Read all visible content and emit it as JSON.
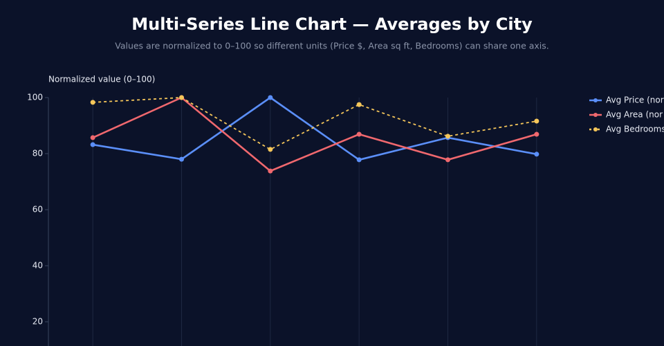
{
  "chart_data": {
    "type": "line",
    "title": "Multi-Series Line Chart — Averages by City",
    "subtitle": "Values are normalized to 0–100 so different units (Price $, Area sq ft, Bedrooms) can share one axis.",
    "y_label": "Normalized value (0–100)",
    "categories": [
      null,
      null,
      null,
      null,
      null,
      null
    ],
    "series": [
      {
        "name": "Avg Price (nor",
        "color": "#5b8ff9",
        "dash": false,
        "values": [
          83.2,
          78.0,
          100,
          77.8,
          85.7,
          79.8
        ]
      },
      {
        "name": "Avg Area (nor",
        "color": "#f0686e",
        "dash": false,
        "values": [
          85.7,
          100,
          73.8,
          86.9,
          77.8,
          86.9
        ]
      },
      {
        "name": "Avg Bedrooms",
        "color": "#f5c65a",
        "dash": true,
        "values": [
          98.3,
          100,
          81.5,
          97.5,
          86.2,
          91.6
        ]
      }
    ],
    "ylim": [
      0,
      100
    ],
    "yticks": [
      20,
      40,
      60,
      80,
      100
    ],
    "grid": "x",
    "legend": "right"
  }
}
